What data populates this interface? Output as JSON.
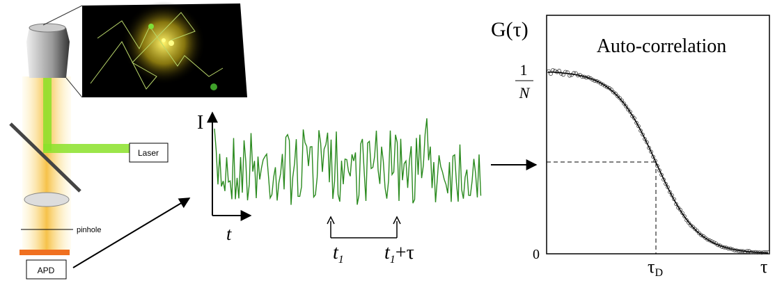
{
  "microscope": {
    "laser": "Laser",
    "pinhole": "pinhole",
    "detector": "APD"
  },
  "trace": {
    "y_axis": "I",
    "x_axis": "t",
    "t1": {
      "base": "t",
      "sub": "1"
    },
    "t1_plus_tau": {
      "base": "t",
      "sub": "1",
      "suffix": "+τ"
    }
  },
  "correlation": {
    "y_axis": "G(τ)",
    "title": "Auto-correlation",
    "top_label": {
      "numerator": "1",
      "denominator": "N"
    },
    "zero_label": "0",
    "tau_d": {
      "base": "τ",
      "sub": "D"
    },
    "x_axis": "τ"
  }
}
